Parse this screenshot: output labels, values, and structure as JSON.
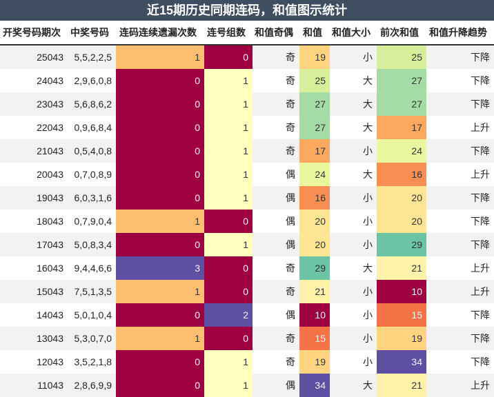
{
  "title": "近15期历史同期连码，和值图示统计",
  "table": {
    "header": [
      "开奖号码期次",
      "中奖号码",
      "连码连续遗漏次数",
      "连号组数",
      "和值奇偶",
      "和值",
      "和值大小",
      "前次和值",
      "和值升降趋势"
    ],
    "rows": [
      [
        25043,
        "5,5,2,2,5",
        1,
        0,
        "奇",
        19,
        "小",
        25,
        "下降"
      ],
      [
        24043,
        "2,9,6,0,8",
        0,
        1,
        "奇",
        25,
        "大",
        27,
        "下降"
      ],
      [
        23043,
        "5,6,8,6,2",
        0,
        1,
        "奇",
        27,
        "大",
        27,
        "下降"
      ],
      [
        22043,
        "0,9,6,8,4",
        0,
        1,
        "奇",
        27,
        "大",
        17,
        "上升"
      ],
      [
        21043,
        "0,5,4,0,8",
        0,
        1,
        "奇",
        17,
        "小",
        24,
        "下降"
      ],
      [
        20043,
        "0,7,0,8,9",
        0,
        1,
        "偶",
        24,
        "大",
        16,
        "上升"
      ],
      [
        19043,
        "6,0,3,1,6",
        0,
        1,
        "偶",
        16,
        "小",
        20,
        "下降"
      ],
      [
        18043,
        "0,7,9,0,4",
        1,
        0,
        "偶",
        20,
        "小",
        20,
        "下降"
      ],
      [
        17043,
        "5,0,8,3,4",
        0,
        1,
        "偶",
        20,
        "小",
        29,
        "下降"
      ],
      [
        16043,
        "9,4,4,6,6",
        3,
        0,
        "奇",
        29,
        "大",
        21,
        "上升"
      ],
      [
        15043,
        "7,5,1,3,5",
        1,
        0,
        "奇",
        21,
        "小",
        10,
        "上升"
      ],
      [
        14043,
        "5,0,1,0,4",
        0,
        2,
        "偶",
        10,
        "小",
        15,
        "下降"
      ],
      [
        13043,
        "5,3,0,7,0",
        1,
        0,
        "奇",
        15,
        "小",
        19,
        "下降"
      ],
      [
        12043,
        "3,5,2,1,8",
        0,
        1,
        "奇",
        19,
        "小",
        34,
        "下降"
      ],
      [
        11043,
        "2,8,6,9,9",
        0,
        1,
        "偶",
        34,
        "大",
        21,
        "上升"
      ]
    ]
  }
}
